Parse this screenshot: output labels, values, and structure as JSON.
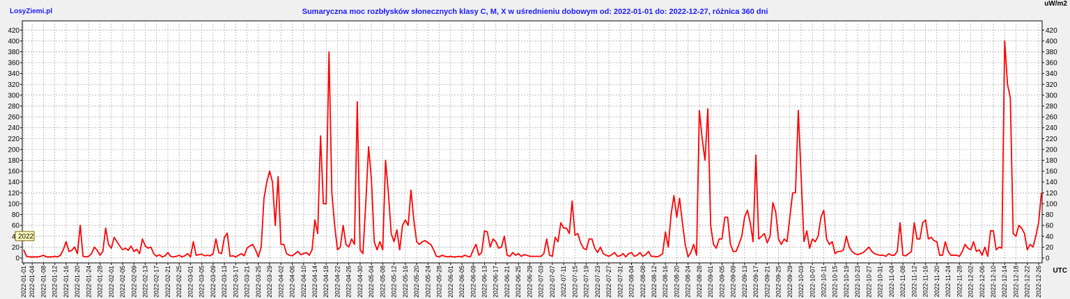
{
  "chart_data": {
    "type": "line",
    "site": "LosyZiemi.pl",
    "title": "Sumaryczna moc rozbłysków słonecznych klasy C, M, X w uśrednieniu dobowym od: 2022-01-01 do: 2022-12-27, różnica 360 dni",
    "unit": "uW/m2",
    "x_unit": "UTC",
    "year_label": "2022",
    "color": "#ff0000",
    "grid": true,
    "ylim": [
      -9,
      437
    ],
    "yticks": [
      0,
      20,
      40,
      60,
      80,
      100,
      120,
      140,
      160,
      180,
      200,
      220,
      240,
      260,
      280,
      300,
      320,
      340,
      360,
      380,
      400,
      420
    ],
    "categories": [
      "2022-01-01",
      null,
      null,
      "2022-01-04",
      null,
      null,
      null,
      "2022-01-08",
      null,
      null,
      null,
      "2022-01-12",
      null,
      null,
      null,
      "2022-01-16",
      null,
      null,
      null,
      "2022-01-20",
      null,
      null,
      null,
      "2022-01-24",
      null,
      null,
      null,
      "2022-01-28",
      null,
      null,
      null,
      "2022-02-01",
      null,
      null,
      null,
      "2022-02-05",
      null,
      null,
      null,
      "2022-02-09",
      null,
      null,
      null,
      "2022-02-13",
      null,
      null,
      null,
      "2022-02-17",
      null,
      null,
      null,
      "2022-02-21",
      null,
      null,
      null,
      "2022-02-25",
      null,
      null,
      null,
      "2022-03-01",
      null,
      null,
      null,
      "2022-03-05",
      null,
      null,
      null,
      "2022-03-09",
      null,
      null,
      null,
      "2022-03-13",
      null,
      null,
      null,
      "2022-03-17",
      null,
      null,
      null,
      "2022-03-21",
      null,
      null,
      null,
      "2022-03-25",
      null,
      null,
      null,
      "2022-03-29",
      null,
      null,
      null,
      "2022-04-02",
      null,
      null,
      null,
      "2022-04-06",
      null,
      null,
      null,
      "2022-04-10",
      null,
      null,
      null,
      "2022-04-14",
      null,
      null,
      null,
      "2022-04-18",
      null,
      null,
      null,
      "2022-04-22",
      null,
      null,
      null,
      "2022-04-26",
      null,
      null,
      null,
      "2022-04-30",
      null,
      null,
      null,
      "2022-05-04",
      null,
      null,
      null,
      "2022-05-08",
      null,
      null,
      null,
      "2022-05-12",
      null,
      null,
      null,
      "2022-05-16",
      null,
      null,
      null,
      "2022-05-20",
      null,
      null,
      null,
      "2022-05-24",
      null,
      null,
      null,
      "2022-05-28",
      null,
      null,
      null,
      "2022-06-01",
      null,
      null,
      null,
      "2022-06-05",
      null,
      null,
      null,
      "2022-06-09",
      null,
      null,
      null,
      "2022-06-13",
      null,
      null,
      null,
      "2022-06-17",
      null,
      null,
      null,
      "2022-06-21",
      null,
      null,
      null,
      "2022-06-25",
      null,
      null,
      null,
      "2022-06-29",
      null,
      null,
      null,
      "2022-07-03",
      null,
      null,
      null,
      "2022-07-07",
      null,
      null,
      null,
      "2022-07-11",
      null,
      null,
      null,
      "2022-07-15",
      null,
      null,
      null,
      "2022-07-19",
      null,
      null,
      null,
      "2022-07-23",
      null,
      null,
      null,
      "2022-07-27",
      null,
      null,
      null,
      "2022-07-31",
      null,
      null,
      null,
      "2022-08-04",
      null,
      null,
      null,
      "2022-08-08",
      null,
      null,
      null,
      "2022-08-12",
      null,
      null,
      null,
      "2022-08-16",
      null,
      null,
      null,
      "2022-08-20",
      null,
      null,
      null,
      "2022-08-24",
      null,
      null,
      null,
      "2022-08-28",
      null,
      null,
      null,
      "2022-09-01",
      null,
      null,
      null,
      "2022-09-05",
      null,
      null,
      null,
      "2022-09-09",
      null,
      null,
      null,
      "2022-09-13",
      null,
      null,
      null,
      "2022-09-17",
      null,
      null,
      null,
      "2022-09-21",
      null,
      null,
      null,
      "2022-09-25",
      null,
      null,
      null,
      "2022-09-29",
      null,
      null,
      null,
      "2022-10-03",
      null,
      null,
      null,
      "2022-10-07",
      null,
      null,
      null,
      "2022-10-11",
      null,
      null,
      null,
      "2022-10-15",
      null,
      null,
      null,
      "2022-10-19",
      null,
      null,
      null,
      "2022-10-23",
      null,
      null,
      null,
      "2022-10-27",
      null,
      null,
      null,
      "2022-10-31",
      null,
      null,
      null,
      "2022-11-04",
      null,
      null,
      null,
      "2022-11-08",
      null,
      null,
      null,
      "2022-11-12",
      null,
      null,
      null,
      "2022-11-16",
      null,
      null,
      null,
      "2022-11-20",
      null,
      null,
      null,
      "2022-11-24",
      null,
      null,
      null,
      "2022-11-28",
      null,
      null,
      null,
      "2022-12-02",
      null,
      null,
      null,
      "2022-12-06",
      null,
      null,
      null,
      "2022-12-10",
      null,
      null,
      null,
      "2022-12-14",
      null,
      null,
      null,
      "2022-12-18",
      null,
      null,
      null,
      "2022-12-22",
      null,
      null,
      null,
      "2022-12-26",
      null
    ],
    "values": [
      15,
      3,
      2,
      2,
      2,
      2,
      3,
      5,
      2,
      2,
      2,
      3,
      2,
      5,
      15,
      30,
      12,
      14,
      20,
      8,
      60,
      3,
      2,
      3,
      8,
      20,
      14,
      5,
      12,
      55,
      25,
      18,
      38,
      30,
      22,
      15,
      18,
      14,
      22,
      12,
      16,
      8,
      35,
      22,
      18,
      20,
      8,
      3,
      6,
      2,
      4,
      10,
      3,
      2,
      3,
      5,
      2,
      4,
      8,
      2,
      30,
      5,
      6,
      7,
      4,
      5,
      4,
      8,
      35,
      10,
      8,
      38,
      46,
      3,
      4,
      2,
      5,
      8,
      4,
      18,
      22,
      25,
      15,
      2,
      20,
      110,
      140,
      160,
      140,
      60,
      150,
      25,
      25,
      8,
      5,
      4,
      8,
      12,
      6,
      8,
      10,
      5,
      15,
      70,
      45,
      225,
      100,
      100,
      380,
      120,
      60,
      15,
      20,
      60,
      25,
      20,
      35,
      25,
      288,
      15,
      8,
      100,
      205,
      145,
      30,
      15,
      30,
      15,
      180,
      120,
      45,
      30,
      52,
      15,
      60,
      70,
      60,
      125,
      70,
      30,
      25,
      30,
      32,
      28,
      25,
      15,
      3,
      2,
      5,
      3,
      2,
      3,
      2,
      2,
      3,
      2,
      5,
      3,
      2,
      15,
      25,
      5,
      10,
      50,
      48,
      20,
      35,
      30,
      18,
      20,
      40,
      5,
      3,
      10,
      5,
      8,
      3,
      6,
      5,
      3,
      3,
      3,
      3,
      3,
      8,
      35,
      5,
      3,
      38,
      30,
      65,
      55,
      55,
      45,
      105,
      42,
      45,
      28,
      18,
      15,
      35,
      35,
      18,
      10,
      20,
      8,
      5,
      3,
      6,
      10,
      3,
      4,
      8,
      2,
      8,
      10,
      3,
      5,
      10,
      3,
      6,
      12,
      3,
      3,
      2,
      4,
      8,
      48,
      20,
      80,
      115,
      75,
      110,
      65,
      25,
      2,
      10,
      25,
      5,
      272,
      220,
      180,
      275,
      60,
      25,
      18,
      35,
      35,
      75,
      75,
      25,
      12,
      12,
      25,
      40,
      75,
      88,
      65,
      30,
      190,
      35,
      40,
      45,
      28,
      40,
      102,
      85,
      35,
      25,
      35,
      30,
      75,
      120,
      120,
      272,
      150,
      30,
      50,
      18,
      35,
      30,
      40,
      75,
      88,
      35,
      25,
      30,
      8,
      12,
      12,
      15,
      40,
      20,
      12,
      8,
      6,
      8,
      10,
      15,
      20,
      12,
      8,
      6,
      5,
      5,
      3,
      8,
      5,
      5,
      12,
      65,
      5,
      4,
      8,
      12,
      65,
      35,
      35,
      65,
      70,
      35,
      38,
      32,
      30,
      5,
      5,
      30,
      12,
      5,
      5,
      5,
      3,
      12,
      25,
      18,
      15,
      30,
      12,
      15,
      5,
      20,
      3,
      50,
      50,
      15,
      20,
      18,
      400,
      320,
      295,
      45,
      40,
      60,
      55,
      45,
      15,
      25,
      20,
      40,
      65,
      120
    ]
  }
}
